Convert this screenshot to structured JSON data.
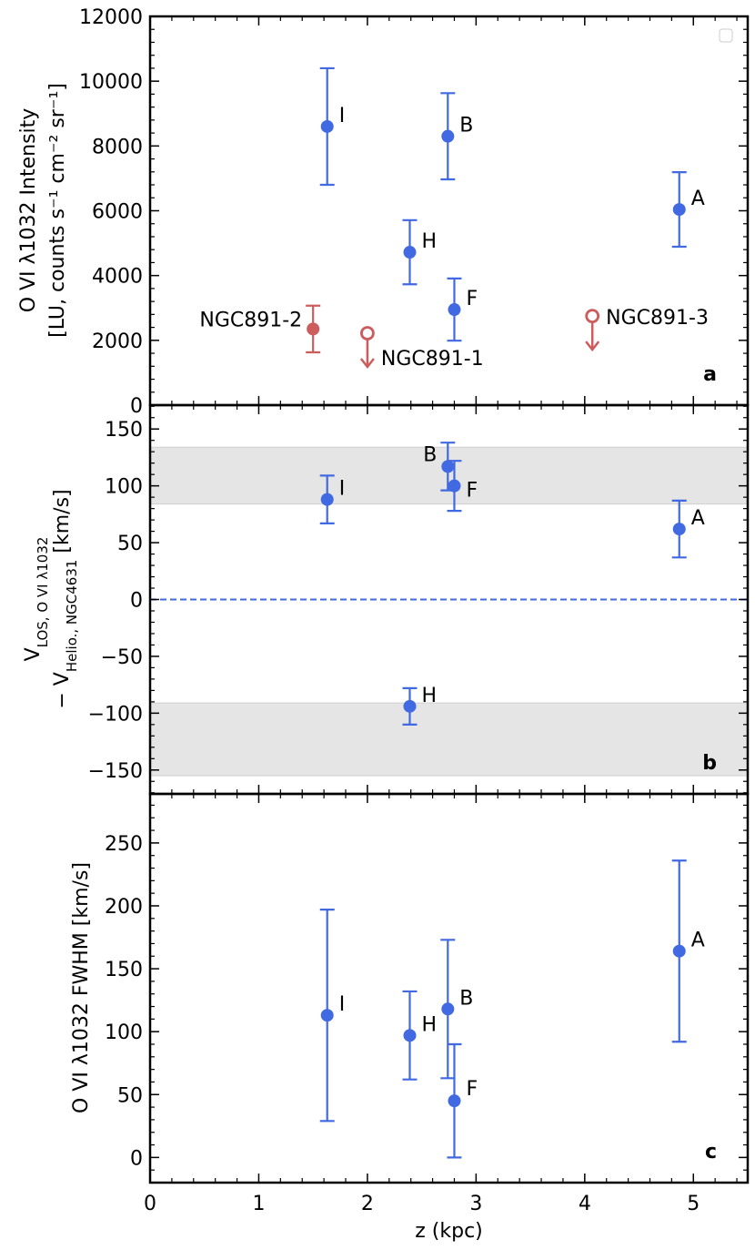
{
  "chart_data": [
    {
      "type": "scatter",
      "panel_label": "a",
      "ylabel": [
        [
          "O VI λ1032 Intensity"
        ],
        [
          "[LU,  counts s⁻¹ cm⁻² sr⁻¹]"
        ]
      ],
      "xlim": [
        0,
        5.5
      ],
      "xticks": [
        0,
        1,
        2,
        3,
        4,
        5
      ],
      "ylim": [
        0,
        12000
      ],
      "yticks": [
        0,
        2000,
        4000,
        6000,
        8000,
        10000,
        12000
      ],
      "series": [
        {
          "color": "#4169e1",
          "x": [
            1.63,
            2.74,
            4.87,
            2.39,
            2.8
          ],
          "values": [
            8600,
            8300,
            6040,
            4720,
            2950
          ],
          "errors": [
            1800,
            1330,
            1150,
            990,
            960
          ],
          "labels": [
            "I",
            "B",
            "A",
            "H",
            "F"
          ]
        },
        {
          "color": "#cd5c5c",
          "x": [
            1.5
          ],
          "values": [
            2350
          ],
          "errors": [
            720
          ],
          "labels": [
            "NGC891-2"
          ]
        },
        {
          "color": "#cd5c5c",
          "x": [
            2.0,
            4.07
          ],
          "values": [
            2220,
            2750
          ],
          "labels": [
            "NGC891-1",
            "NGC891-3"
          ],
          "upper_limit": true
        }
      ]
    },
    {
      "type": "scatter",
      "panel_label": "b",
      "ylabel": [
        [
          "V",
          "LOS, O VI λ1032"
        ],
        [
          "− V",
          "Helio., NGC4631",
          " [km/s]"
        ]
      ],
      "xlim": [
        0,
        5.5
      ],
      "xticks": [
        0,
        1,
        2,
        3,
        4,
        5
      ],
      "ylim": [
        -171,
        171
      ],
      "yticks": [
        {
          "value": -150,
          "label": "−150"
        },
        {
          "value": -100,
          "label": "−100"
        },
        {
          "value": -50,
          "label": "−50"
        },
        0,
        50,
        100,
        150
      ],
      "bands": [
        [
          84,
          134
        ],
        [
          -155,
          -91
        ]
      ],
      "hline": 0,
      "series": [
        {
          "color": "#4169e1",
          "x": [
            1.63,
            2.74,
            2.8,
            4.87,
            2.39
          ],
          "values": [
            88,
            117,
            100,
            62,
            -94
          ],
          "errors": [
            21,
            21,
            22,
            25,
            16
          ],
          "labels": [
            "I",
            "B",
            "F",
            "A",
            "H"
          ]
        }
      ]
    },
    {
      "type": "scatter",
      "panel_label": "c",
      "ylabel": [
        [
          "O VI λ1032 FWHM [km/s]"
        ]
      ],
      "xlabel": "z (kpc)",
      "xlim": [
        0,
        5.5
      ],
      "xticks": [
        0,
        1,
        2,
        3,
        4,
        5
      ],
      "ylim": [
        -20,
        289
      ],
      "yticks": [
        0,
        50,
        100,
        150,
        200,
        250
      ],
      "series": [
        {
          "color": "#4169e1",
          "x": [
            1.63,
            2.39,
            2.74,
            2.8,
            4.87
          ],
          "values": [
            113,
            97,
            118,
            45,
            164
          ],
          "errors": [
            84,
            35,
            55,
            45,
            72
          ],
          "labels": [
            "I",
            "H",
            "B",
            "F",
            "A"
          ]
        }
      ]
    }
  ]
}
